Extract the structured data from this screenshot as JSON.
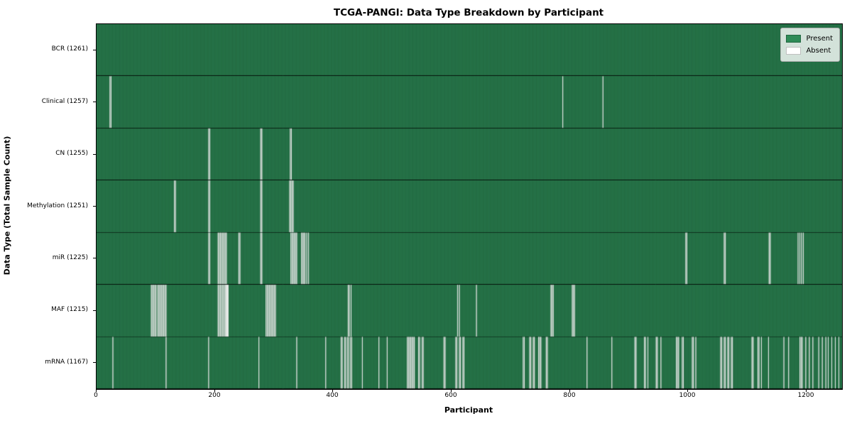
{
  "chart_data": {
    "type": "heatmap",
    "title": "TCGA-PANGI: Data Type Breakdown by Participant",
    "xlabel": "Participant",
    "ylabel": "Data Type (Total Sample Count)",
    "total_participants": 1261,
    "x_ticks": [
      0,
      200,
      400,
      600,
      800,
      1000,
      1200
    ],
    "legend": [
      {
        "label": "Present",
        "color": "#2e8b57"
      },
      {
        "label": "Absent",
        "color": "#ffffff"
      }
    ],
    "colors": {
      "present": "#2e8b57",
      "absent": "#ffffff",
      "cell_edge": "#000000",
      "background": "#ffffff"
    },
    "rows": [
      {
        "label": "BCR",
        "count": 1261,
        "absent": []
      },
      {
        "label": "Clinical",
        "count": 1257,
        "absent": [
          22,
          24,
          788,
          856
        ]
      },
      {
        "label": "CN",
        "count": 1255,
        "absent": [
          189,
          191,
          277,
          279,
          327,
          329
        ]
      },
      {
        "label": "Methylation",
        "count": 1251,
        "absent": [
          131,
          133,
          189,
          191,
          277,
          279,
          326,
          328,
          330,
          332
        ]
      },
      {
        "label": "miR",
        "count": 1225,
        "absent": [
          189,
          191,
          205,
          207,
          209,
          211,
          213,
          215,
          217,
          219,
          240,
          242,
          277,
          279,
          328,
          330,
          332,
          334,
          336,
          338,
          346,
          348,
          350,
          352,
          355,
          358,
          996,
          998,
          1061,
          1063,
          1137,
          1139,
          1186,
          1189,
          1192,
          1195
        ]
      },
      {
        "label": "MAF",
        "count": 1215,
        "absent": [
          92,
          94,
          96,
          98,
          100,
          103,
          105,
          107,
          109,
          111,
          113,
          115,
          117,
          205,
          207,
          209,
          211,
          213,
          215,
          217,
          218,
          219,
          220,
          221,
          222,
          286,
          288,
          290,
          292,
          294,
          296,
          298,
          300,
          302,
          425,
          427,
          430,
          610,
          613,
          642,
          768,
          770,
          772,
          804,
          806,
          808
        ]
      },
      {
        "label": "mRNA",
        "count": 1167,
        "absent": [
          27,
          117,
          189,
          274,
          338,
          387,
          413,
          415,
          419,
          421,
          424,
          426,
          429,
          431,
          449,
          477,
          491,
          525,
          527,
          529,
          531,
          533,
          535,
          537,
          544,
          546,
          550,
          552,
          587,
          589,
          607,
          609,
          613,
          615,
          619,
          621,
          721,
          723,
          732,
          734,
          738,
          740,
          747,
          749,
          751,
          760,
          762,
          829,
          871,
          910,
          912,
          926,
          928,
          932,
          946,
          948,
          954,
          980,
          982,
          984,
          990,
          992,
          1007,
          1009,
          1013,
          1055,
          1057,
          1061,
          1063,
          1067,
          1069,
          1073,
          1075,
          1108,
          1110,
          1118,
          1120,
          1124,
          1136,
          1162,
          1170,
          1189,
          1191,
          1193,
          1199,
          1205,
          1211,
          1221,
          1227,
          1233,
          1237,
          1243,
          1249,
          1255
        ]
      }
    ]
  }
}
